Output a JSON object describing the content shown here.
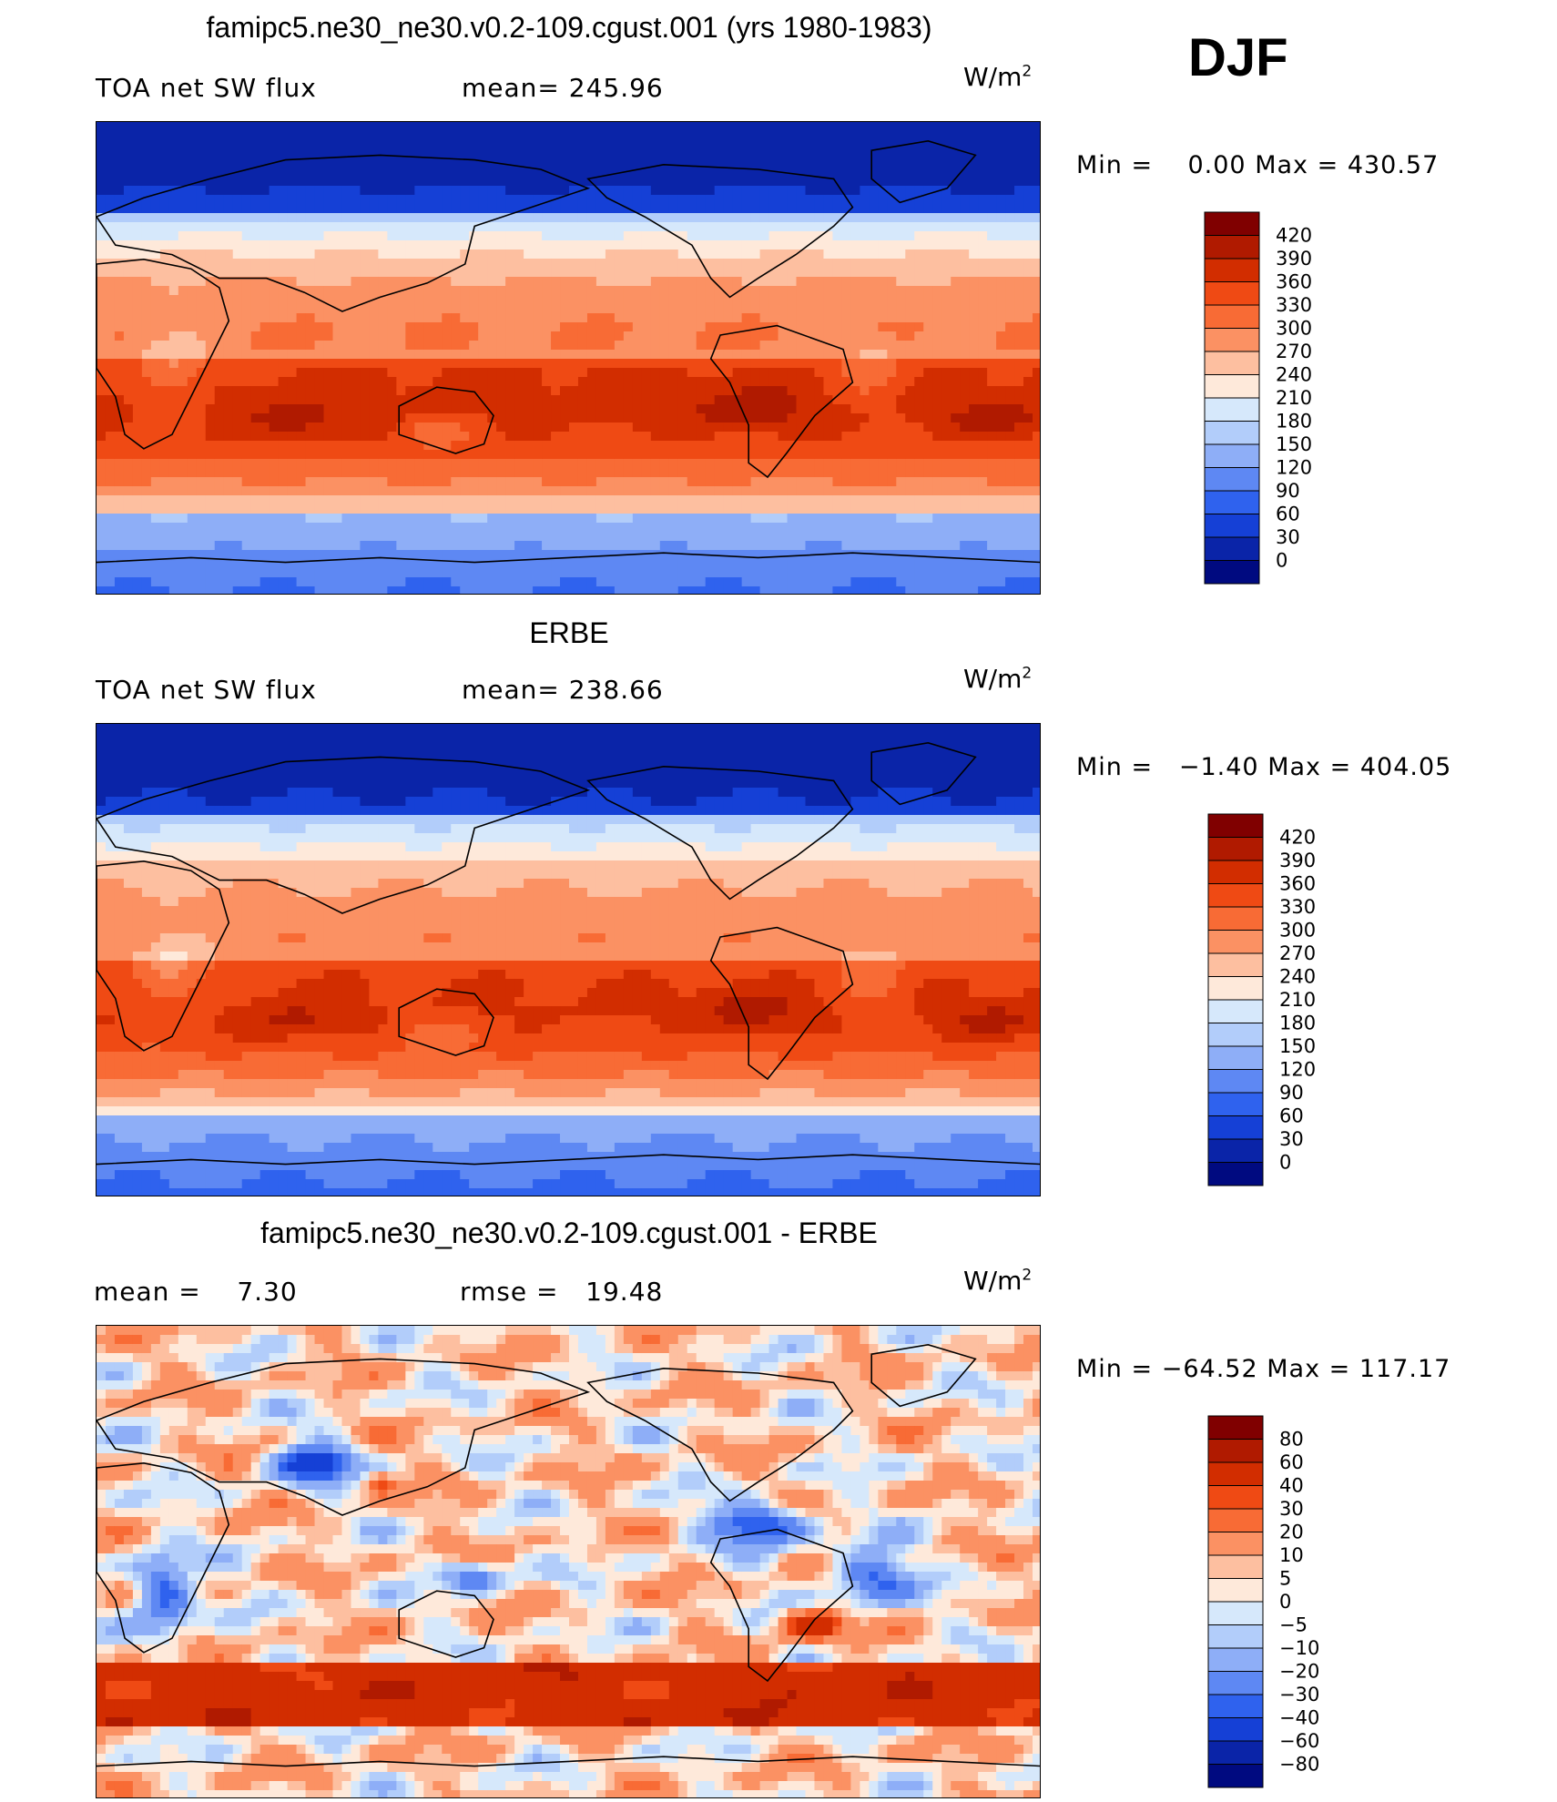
{
  "season": "DJF",
  "panels": [
    {
      "title": "famipc5.ne30_ne30.v0.2-109.cgust.001 (yrs 1980-1983)",
      "left_label": "TOA net SW flux",
      "center_label": "mean= 245.96",
      "units": "W/m",
      "units_sup": "2",
      "min_label": "Min =",
      "min_value": "0.00",
      "max_label": "Max =",
      "max_value": "430.57",
      "colorbar": {
        "levels": [
          "420",
          "390",
          "360",
          "330",
          "300",
          "270",
          "240",
          "210",
          "180",
          "150",
          "120",
          "90",
          "60",
          "30",
          "0"
        ],
        "colors": [
          "#800000",
          "#b01a00",
          "#d22d00",
          "#ef4a14",
          "#f86b35",
          "#fb9163",
          "#fdbfa0",
          "#fee9da",
          "#d6e8fb",
          "#b2cdfa",
          "#8eaef7",
          "#5e88f3",
          "#2f62ee",
          "#1540d6",
          "#0a24a8",
          "#000a80"
        ]
      },
      "map_type": "sw"
    },
    {
      "title": "ERBE",
      "left_label": "TOA net SW flux",
      "center_label": "mean= 238.66",
      "units": "W/m",
      "units_sup": "2",
      "min_label": "Min =",
      "min_value": "−1.40",
      "max_label": "Max =",
      "max_value": "404.05",
      "colorbar": {
        "levels": [
          "420",
          "390",
          "360",
          "330",
          "300",
          "270",
          "240",
          "210",
          "180",
          "150",
          "120",
          "90",
          "60",
          "30",
          "0"
        ],
        "colors": [
          "#800000",
          "#b01a00",
          "#d22d00",
          "#ef4a14",
          "#f86b35",
          "#fb9163",
          "#fdbfa0",
          "#fee9da",
          "#d6e8fb",
          "#b2cdfa",
          "#8eaef7",
          "#5e88f3",
          "#2f62ee",
          "#1540d6",
          "#0a24a8",
          "#000a80"
        ]
      },
      "map_type": "sw_obs"
    },
    {
      "title": "famipc5.ne30_ne30.v0.2-109.cgust.001 - ERBE",
      "left_label": "mean =    7.30",
      "center_label": "rmse =   19.48",
      "units": "W/m",
      "units_sup": "2",
      "min_label": "Min =",
      "min_value": "−64.52",
      "max_label": "Max =",
      "max_value": "117.17",
      "colorbar": {
        "levels": [
          "80",
          "60",
          "40",
          "30",
          "20",
          "10",
          "5",
          "0",
          "−5",
          "−10",
          "−20",
          "−30",
          "−40",
          "−60",
          "−80"
        ],
        "colors": [
          "#800000",
          "#b01a00",
          "#d22d00",
          "#ef4a14",
          "#f86b35",
          "#fb9163",
          "#fdbfa0",
          "#fee9da",
          "#d6e8fb",
          "#b2cdfa",
          "#8eaef7",
          "#5e88f3",
          "#2f62ee",
          "#1540d6",
          "#0a24a8",
          "#000a80"
        ]
      },
      "map_type": "diff"
    }
  ]
}
